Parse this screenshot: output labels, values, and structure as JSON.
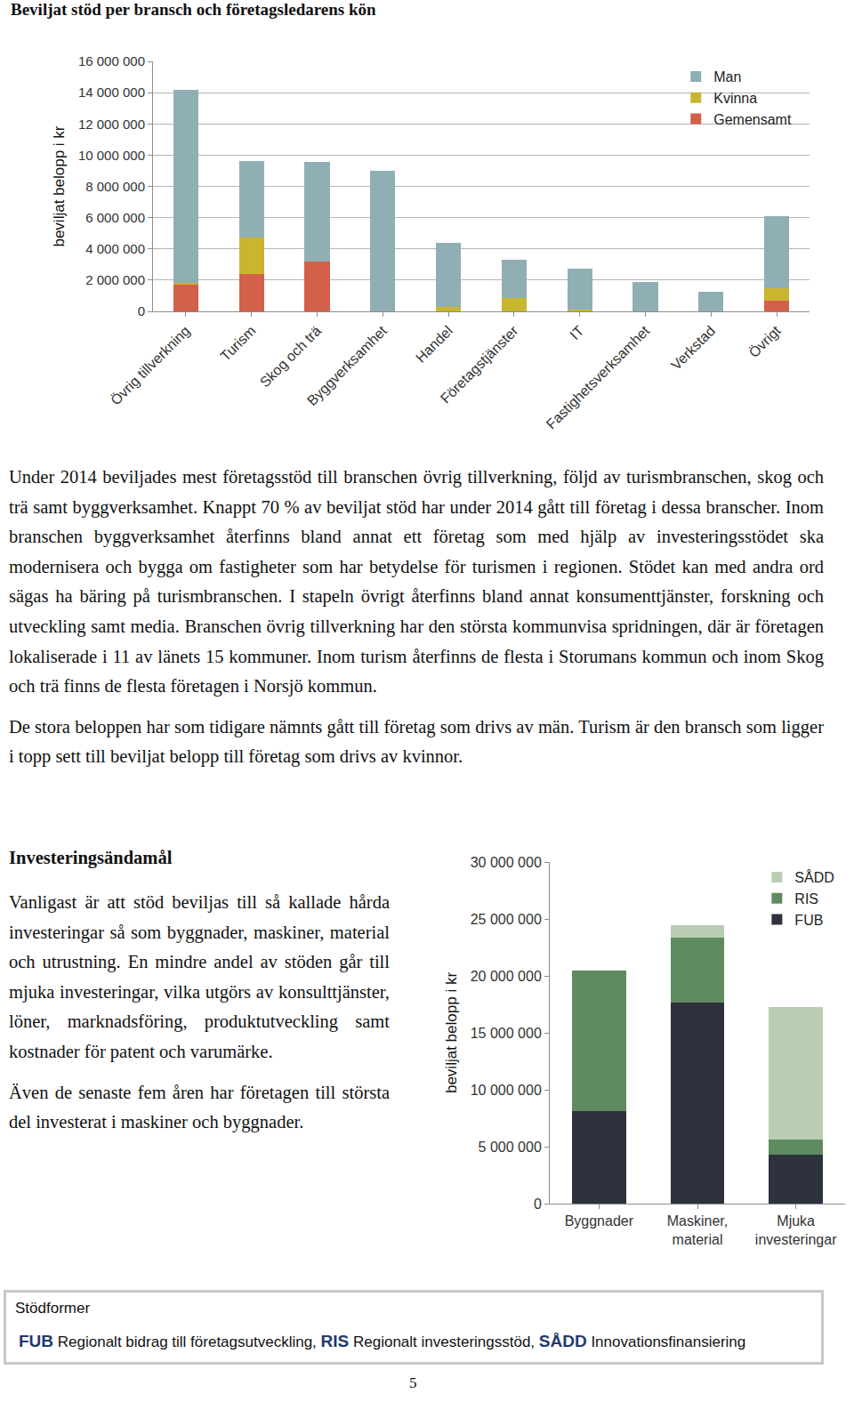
{
  "document": {
    "heading": "Beviljat stöd per bransch och företagsledarens kön",
    "paragraphs": [
      "Under 2014 beviljades mest företagsstöd till branschen övrig tillverkning, följd av turismbranschen, skog och trä samt byggverksamhet. Knappt 70 % av beviljat stöd har under 2014 gått till företag i dessa branscher. Inom branschen byggverksamhet återfinns bland annat ett företag som med hjälp av investeringsstödet ska modernisera och bygga om fastigheter som har betydelse för turismen i regionen. Stödet kan med andra ord sägas ha bäring på turismbranschen. I stapeln övrigt återfinns bland annat konsumenttjänster, forskning och utveckling samt media. Branschen övrig tillverkning har den största kommunvisa spridningen, där är företagen lokaliserade i 11 av länets 15 kommuner. Inom turism återfinns de flesta i Storumans kommun och inom Skog och trä finns de flesta företagen i Norsjö kommun.",
      "De stora beloppen har som tidigare nämnts gått till företag som drivs av män. Turism är den bransch som ligger i topp sett till beviljat belopp till företag som drivs av kvinnor."
    ],
    "section": {
      "title": "Investeringsändamål",
      "paragraphs": [
        "Vanligast är att stöd beviljas till så kallade hårda investeringar så som byggnader, maskiner, material och utrustning. En mindre andel av stöden går till mjuka investeringar, vilka utgörs av konsulttjänster, löner, marknadsföring, produktutveckling samt kostnader för patent och varumärke.",
        "Även de senaste fem åren har företagen till största del investerat i maskiner och byggnader."
      ]
    },
    "box": {
      "title": "Stödformer",
      "items": [
        {
          "abbr": "FUB",
          "text": "Regionalt bidrag till företagsutveckling,"
        },
        {
          "abbr": "RIS",
          "text": "Regionalt investeringsstöd,"
        },
        {
          "abbr": "SÅDD",
          "text": "Innovationsfinansiering"
        }
      ]
    },
    "page_number": "5"
  },
  "chart_data": [
    {
      "type": "bar",
      "stacked": true,
      "grid": true,
      "legend": "upper right",
      "y_label": "beviljat belopp i kr",
      "categories": [
        "Övrig tillverkning",
        "Turism",
        "Skog och trä",
        "Byggverksamhet",
        "Handel",
        "Företagstjänster",
        "IT",
        "Fastighetsverksamhet",
        "Verkstad",
        "Övrigt"
      ],
      "series": [
        {
          "name": "Man",
          "color": "#8fafb4",
          "values": [
            12400000,
            4900000,
            6350000,
            9000000,
            4100000,
            2470000,
            2660000,
            1900000,
            1260000,
            4600000
          ]
        },
        {
          "name": "Kvinna",
          "color": "#c9b52f",
          "values": [
            100000,
            2350000,
            0,
            0,
            300000,
            860000,
            100000,
            0,
            0,
            800000
          ]
        },
        {
          "name": "Gemensamt",
          "color": "#d2604a",
          "values": [
            1700000,
            2400000,
            3200000,
            0,
            0,
            0,
            0,
            0,
            0,
            700000
          ]
        }
      ],
      "ylim": [
        0,
        16000000
      ],
      "yticks": [
        0,
        {
          "value": 2000000,
          "label": "2 000 000"
        },
        {
          "value": 4000000,
          "label": "4 000 000"
        },
        {
          "value": 6000000,
          "label": "6 000 000"
        },
        {
          "value": 8000000,
          "label": "8 000 000"
        },
        {
          "value": 10000000,
          "label": "10 000 000"
        },
        {
          "value": 12000000,
          "label": "12 000 000"
        },
        {
          "value": 14000000,
          "label": "14 000 000"
        },
        {
          "value": 16000000,
          "label": "16 000 000"
        }
      ]
    },
    {
      "type": "bar",
      "stacked": true,
      "grid": false,
      "legend": "upper right",
      "y_label": "beviljat belopp i kr",
      "categories": [
        "Byggnader",
        "Maskiner,\nmaterial",
        "Mjuka\ninvesteringar"
      ],
      "series": [
        {
          "name": "SÅDD",
          "color": "#b9cdb4",
          "values": [
            0,
            1100000,
            11650000
          ]
        },
        {
          "name": "RIS",
          "color": "#5e8b5f",
          "values": [
            12400000,
            5700000,
            1300000
          ]
        },
        {
          "name": "FUB",
          "color": "#2d323e",
          "values": [
            8100000,
            17650000,
            4300000
          ]
        }
      ],
      "ylim": [
        0,
        30000000
      ],
      "yticks": [
        0,
        {
          "value": 5000000,
          "label": "5 000 000"
        },
        {
          "value": 10000000,
          "label": "10 000 000"
        },
        {
          "value": 15000000,
          "label": "15 000 000"
        },
        {
          "value": 20000000,
          "label": "20 000 000"
        },
        {
          "value": 25000000,
          "label": "25 000 000"
        },
        {
          "value": 30000000,
          "label": "30 000 000"
        }
      ]
    }
  ]
}
